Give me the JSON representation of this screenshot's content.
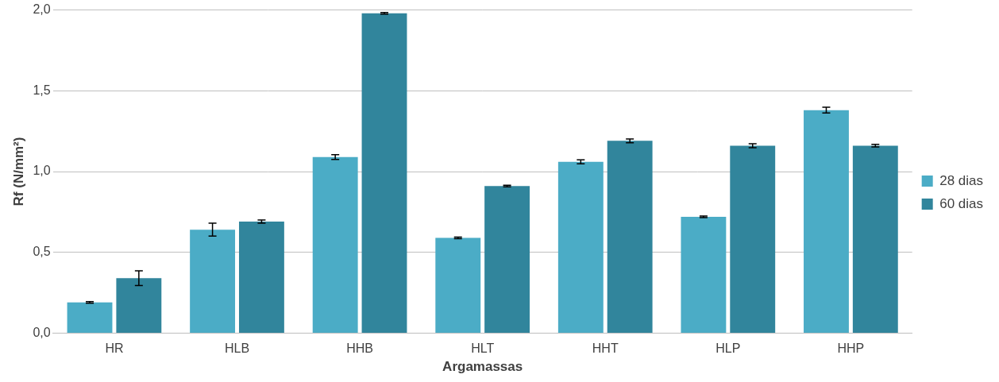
{
  "chart_data": {
    "type": "bar",
    "x_label": "Argamassas",
    "y_label": "Rf (N/mm²)",
    "categories": [
      "HR",
      "HLB",
      "HHB",
      "HLT",
      "HHT",
      "HLP",
      "HHP"
    ],
    "series": [
      {
        "name": "28 dias",
        "color": "#4bacc6",
        "values": [
          0.19,
          0.64,
          1.09,
          0.59,
          1.06,
          0.72,
          1.38
        ],
        "errors": [
          0.005,
          0.04,
          0.015,
          0.005,
          0.012,
          0.005,
          0.018
        ]
      },
      {
        "name": "60 dias",
        "color": "#31859c",
        "values": [
          0.34,
          0.69,
          1.98,
          0.91,
          1.19,
          1.16,
          1.16
        ],
        "errors": [
          0.045,
          0.01,
          0.005,
          0.005,
          0.012,
          0.012,
          0.008
        ]
      }
    ],
    "ylim": [
      0,
      2
    ],
    "yticks": [
      {
        "value": 0,
        "label": "0,0"
      },
      {
        "value": 0.5,
        "label": "0,5"
      },
      {
        "value": 1,
        "label": "1,0"
      },
      {
        "value": 1.5,
        "label": "1,5"
      },
      {
        "value": 2,
        "label": "2,0"
      }
    ],
    "grid": true,
    "legend": "right"
  }
}
